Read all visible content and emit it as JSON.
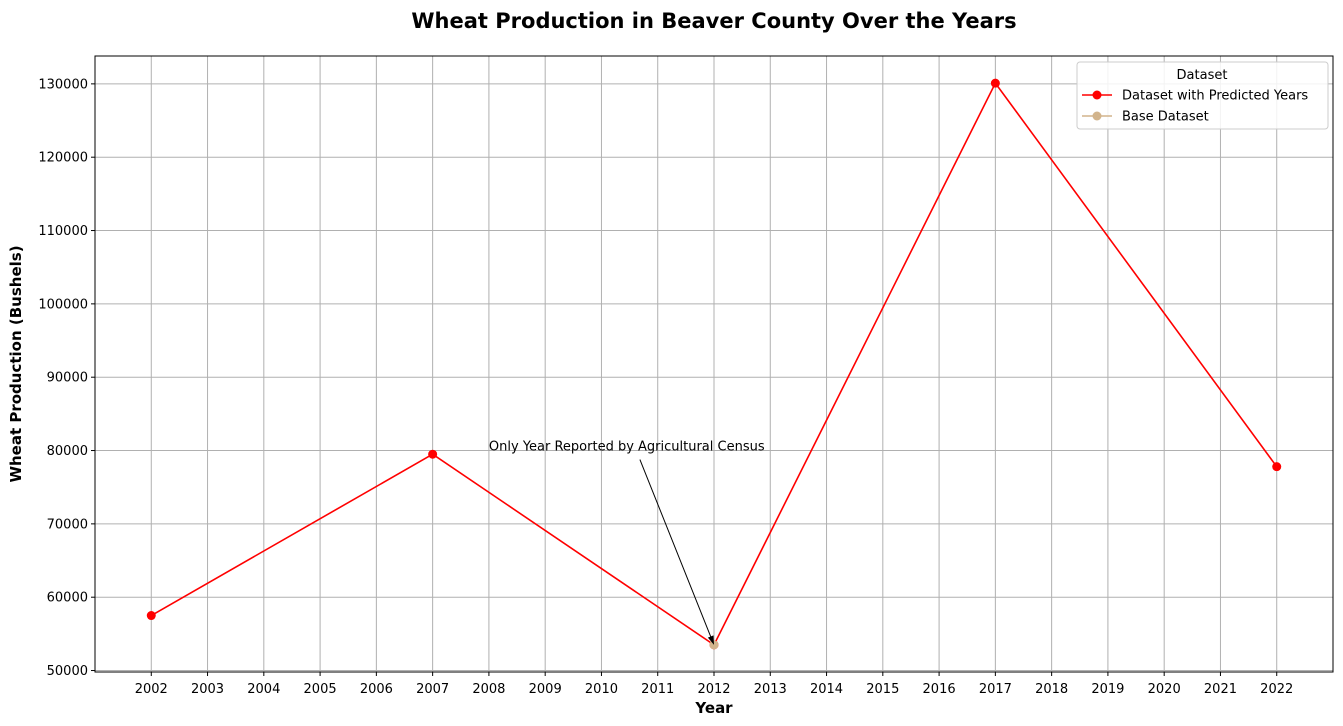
{
  "chart_data": {
    "type": "line",
    "title": "Wheat Production in Beaver County Over the Years",
    "xlabel": "Year",
    "ylabel": "Wheat Production (Bushels)",
    "xlim": [
      2001,
      2023
    ],
    "ylim": [
      49800,
      133800
    ],
    "x_ticks": [
      2002,
      2003,
      2004,
      2005,
      2006,
      2007,
      2008,
      2009,
      2010,
      2011,
      2012,
      2013,
      2014,
      2015,
      2016,
      2017,
      2018,
      2019,
      2020,
      2021,
      2022
    ],
    "y_ticks": [
      50000,
      60000,
      70000,
      80000,
      90000,
      100000,
      110000,
      120000,
      130000
    ],
    "grid": true,
    "legend": {
      "title": "Dataset",
      "position": "top-right"
    },
    "series": [
      {
        "name": "Dataset with Predicted Years",
        "color": "#ff0000",
        "x": [
          2002,
          2007,
          2012,
          2017,
          2022
        ],
        "y": [
          57500,
          79500,
          53500,
          130100,
          77800
        ]
      },
      {
        "name": "Base Dataset",
        "color": "#d2b48c",
        "x": [
          2012
        ],
        "y": [
          53500
        ]
      }
    ],
    "annotation": {
      "text": "Only Year Reported by Agricultural Census",
      "point": {
        "x": 2012,
        "y": 53500
      },
      "text_at": {
        "x": 2008,
        "y": 80000
      }
    }
  }
}
